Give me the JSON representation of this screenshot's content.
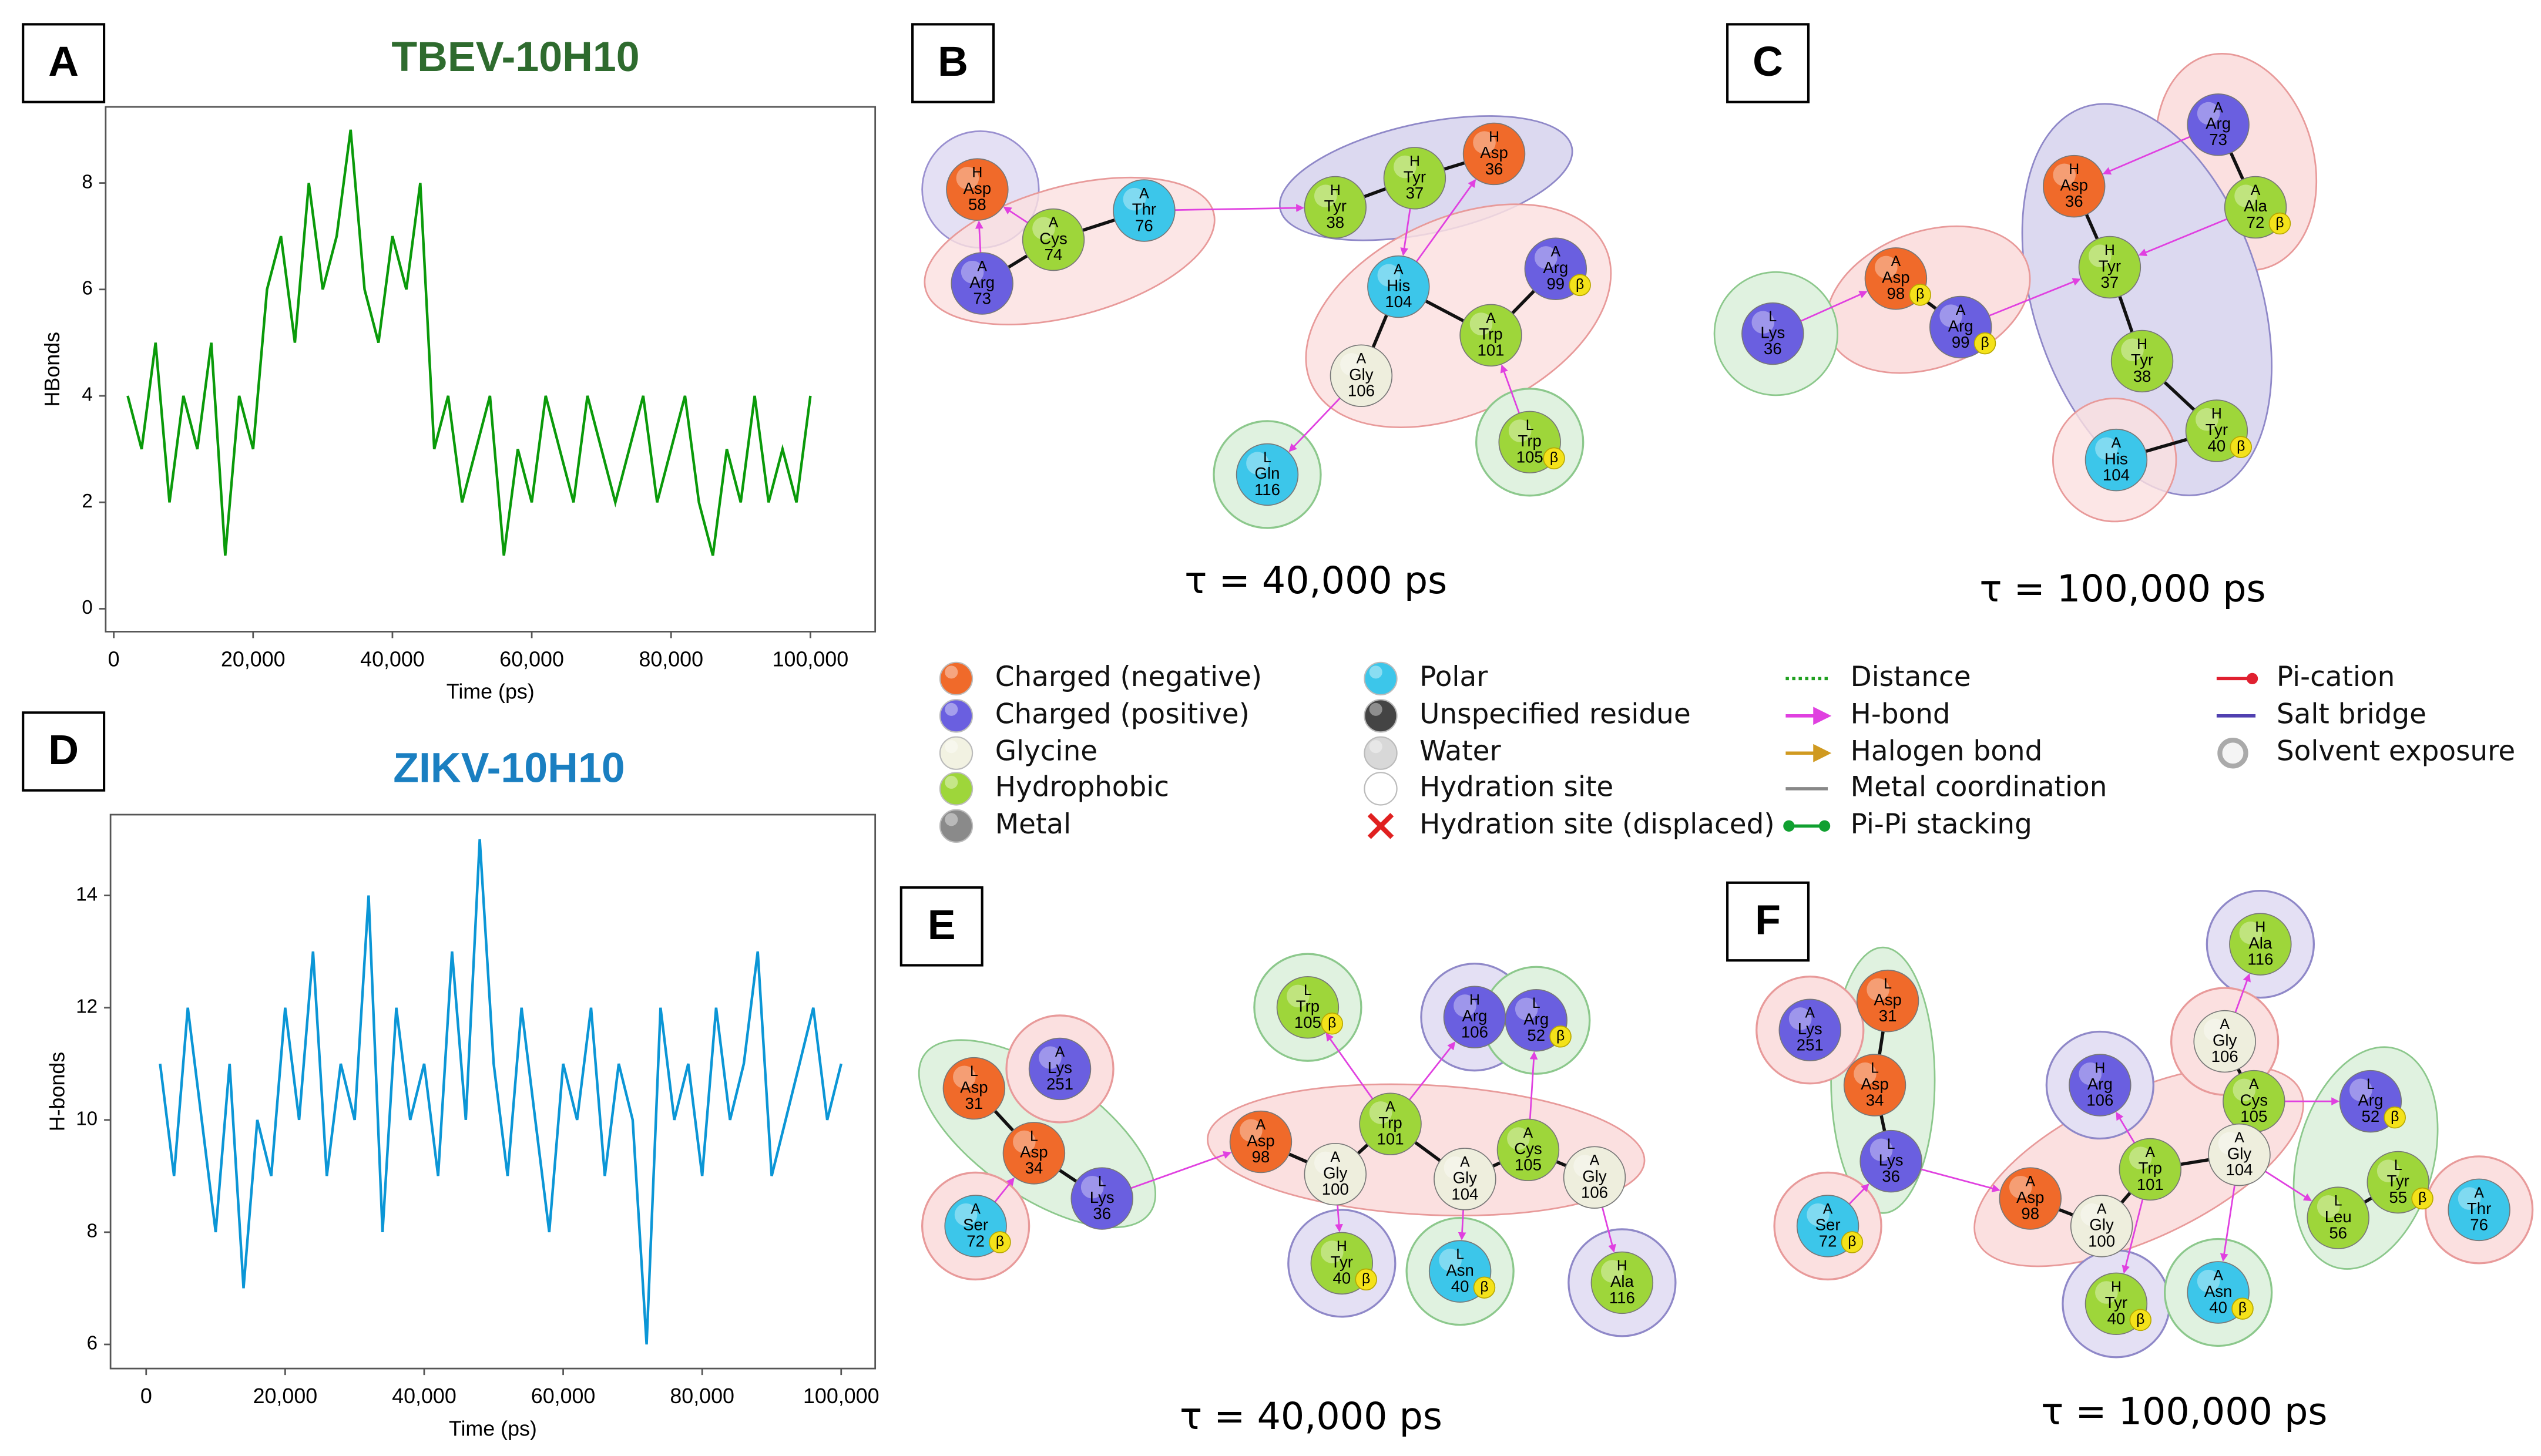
{
  "panel_labels": [
    "A",
    "B",
    "C",
    "D",
    "E",
    "F"
  ],
  "chart_data": [
    {
      "type": "line",
      "title": "TBEV-10H10",
      "title_color": "#2e6b2e",
      "color": "#0a9a0a",
      "xlabel": "Time (ps)",
      "ylabel": "HBonds",
      "xlim": [
        -1163,
        109300
      ],
      "ylim": [
        -0.43,
        9.43
      ],
      "xticks": [
        0,
        {
          "value": 20000,
          "label": "20,000"
        },
        {
          "value": 40000,
          "label": "40,000"
        },
        {
          "value": 60000,
          "label": "60,000"
        },
        {
          "value": 80000,
          "label": "80,000"
        },
        {
          "value": 100000,
          "label": "100,000"
        }
      ],
      "yticks": [
        0,
        2,
        4,
        6,
        8
      ],
      "x": [
        2000,
        4000,
        6000,
        8000,
        10000,
        12000,
        14000,
        16000,
        18000,
        20000,
        22000,
        24000,
        26000,
        28000,
        30000,
        32000,
        34000,
        36000,
        38000,
        40000,
        42000,
        44000,
        46000,
        48000,
        50000,
        52000,
        54000,
        56000,
        58000,
        60000,
        62000,
        64000,
        66000,
        68000,
        70000,
        72000,
        74000,
        76000,
        78000,
        80000,
        82000,
        84000,
        86000,
        88000,
        90000,
        92000,
        94000,
        96000,
        98000,
        100000
      ],
      "values": [
        4,
        3,
        5,
        2,
        4,
        3,
        5,
        1,
        4,
        3,
        6,
        7,
        5,
        8,
        6,
        7,
        9,
        6,
        5,
        7,
        6,
        8,
        3,
        4,
        2,
        3,
        4,
        1,
        3,
        2,
        4,
        3,
        2,
        4,
        3,
        2,
        3,
        4,
        2,
        3,
        4,
        2,
        1,
        3,
        2,
        4,
        2,
        3,
        2,
        4
      ]
    },
    {
      "type": "line",
      "title": "ZIKV-10H10",
      "title_color": "#1a7fc1",
      "color": "#0b96d6",
      "xlabel": "Time (ps)",
      "ylabel": "H-bonds",
      "xlim": [
        -5128,
        104895
      ],
      "ylim": [
        5.57,
        15.44
      ],
      "xticks": [
        0,
        {
          "value": 20000,
          "label": "20,000"
        },
        {
          "value": 40000,
          "label": "40,000"
        },
        {
          "value": 60000,
          "label": "60,000"
        },
        {
          "value": 80000,
          "label": "80,000"
        },
        {
          "value": 100000,
          "label": "100,000"
        }
      ],
      "yticks": [
        6,
        8,
        10,
        12,
        14
      ],
      "x": [
        2000,
        4000,
        6000,
        8000,
        10000,
        12000,
        14000,
        16000,
        18000,
        20000,
        22000,
        24000,
        26000,
        28000,
        30000,
        32000,
        34000,
        36000,
        38000,
        40000,
        42000,
        44000,
        46000,
        48000,
        50000,
        52000,
        54000,
        56000,
        58000,
        60000,
        62000,
        64000,
        66000,
        68000,
        70000,
        72000,
        74000,
        76000,
        78000,
        80000,
        82000,
        84000,
        86000,
        88000,
        90000,
        92000,
        94000,
        96000,
        98000,
        100000
      ],
      "values": [
        11,
        9,
        12,
        10,
        8,
        11,
        7,
        10,
        9,
        12,
        10,
        13,
        9,
        11,
        10,
        14,
        8,
        12,
        10,
        11,
        9,
        13,
        10,
        15,
        11,
        9,
        12,
        10,
        8,
        11,
        10,
        12,
        9,
        11,
        10,
        6,
        12,
        10,
        11,
        9,
        12,
        10,
        11,
        13,
        9,
        10,
        11,
        12,
        10,
        11
      ]
    }
  ],
  "diagrams": [
    {
      "caption": "τ = 40,000 ps",
      "nodes": [
        {
          "chain": "H",
          "residue": "Asp",
          "number": "58",
          "color": "#f06a2a"
        },
        {
          "chain": "A",
          "residue": "Arg",
          "number": "73",
          "color": "#6a5fe0"
        },
        {
          "chain": "A",
          "residue": "Cys",
          "number": "74",
          "color": "#9ed63a"
        },
        {
          "chain": "A",
          "residue": "Thr",
          "number": "76",
          "color": "#3cc6ea"
        },
        {
          "chain": "H",
          "residue": "Tyr",
          "number": "38",
          "color": "#9ed63a"
        },
        {
          "chain": "H",
          "residue": "Tyr",
          "number": "37",
          "color": "#9ed63a"
        },
        {
          "chain": "H",
          "residue": "Asp",
          "number": "36",
          "color": "#f06a2a"
        },
        {
          "chain": "A",
          "residue": "His",
          "number": "104",
          "color": "#3cc6ea"
        },
        {
          "chain": "A",
          "residue": "Arg",
          "number": "99",
          "beta": "β",
          "color": "#6a5fe0"
        },
        {
          "chain": "A",
          "residue": "Trp",
          "number": "101",
          "color": "#9ed63a"
        },
        {
          "chain": "A",
          "residue": "Gly",
          "number": "106",
          "color": "#eeeedd"
        },
        {
          "chain": "L",
          "residue": "Trp",
          "number": "105",
          "beta": "β",
          "color": "#9ed63a"
        },
        {
          "chain": "L",
          "residue": "Gln",
          "number": "116",
          "color": "#3cc6ea"
        }
      ]
    },
    {
      "caption": "τ = 100,000 ps",
      "nodes": [
        {
          "chain": "A",
          "residue": "Arg",
          "number": "73",
          "color": "#6a5fe0"
        },
        {
          "chain": "A",
          "residue": "Ala",
          "number": "72",
          "beta": "β",
          "color": "#9ed63a"
        },
        {
          "chain": "H",
          "residue": "Asp",
          "number": "36",
          "color": "#f06a2a"
        },
        {
          "chain": "H",
          "residue": "Tyr",
          "number": "37",
          "color": "#9ed63a"
        },
        {
          "chain": "A",
          "residue": "Asp",
          "number": "98",
          "beta": "β",
          "color": "#f06a2a"
        },
        {
          "chain": "A",
          "residue": "Arg",
          "number": "99",
          "beta": "β",
          "color": "#6a5fe0"
        },
        {
          "chain": "L",
          "residue": "Lys",
          "number": "36",
          "color": "#6a5fe0"
        },
        {
          "chain": "H",
          "residue": "Tyr",
          "number": "38",
          "color": "#9ed63a"
        },
        {
          "chain": "H",
          "residue": "Tyr",
          "number": "40",
          "beta": "β",
          "color": "#9ed63a"
        },
        {
          "chain": "A",
          "residue": "His",
          "number": "104",
          "color": "#3cc6ea"
        }
      ]
    },
    {
      "caption": "τ = 40,000 ps",
      "nodes": [
        {
          "chain": "L",
          "residue": "Asp",
          "number": "31",
          "color": "#f06a2a"
        },
        {
          "chain": "A",
          "residue": "Lys",
          "number": "251",
          "color": "#6a5fe0"
        },
        {
          "chain": "L",
          "residue": "Asp",
          "number": "34",
          "color": "#f06a2a"
        },
        {
          "chain": "L",
          "residue": "Lys",
          "number": "36",
          "color": "#6a5fe0"
        },
        {
          "chain": "A",
          "residue": "Ser",
          "number": "72",
          "beta": "β",
          "color": "#3cc6ea"
        },
        {
          "chain": "L",
          "residue": "Trp",
          "number": "105",
          "beta": "β",
          "color": "#9ed63a"
        },
        {
          "chain": "H",
          "residue": "Arg",
          "number": "106",
          "color": "#6a5fe0"
        },
        {
          "chain": "L",
          "residue": "Arg",
          "number": "52",
          "beta": "β",
          "color": "#6a5fe0"
        },
        {
          "chain": "A",
          "residue": "Asp",
          "number": "98",
          "color": "#f06a2a"
        },
        {
          "chain": "A",
          "residue": "Gly",
          "number": "100",
          "color": "#eeeedd"
        },
        {
          "chain": "A",
          "residue": "Trp",
          "number": "101",
          "color": "#9ed63a"
        },
        {
          "chain": "A",
          "residue": "Gly",
          "number": "104",
          "color": "#eeeedd"
        },
        {
          "chain": "A",
          "residue": "Cys",
          "number": "105",
          "color": "#9ed63a"
        },
        {
          "chain": "A",
          "residue": "Gly",
          "number": "106",
          "color": "#eeeedd"
        },
        {
          "chain": "H",
          "residue": "Tyr",
          "number": "40",
          "beta": "β",
          "color": "#9ed63a"
        },
        {
          "chain": "L",
          "residue": "Asn",
          "number": "40",
          "beta": "β",
          "color": "#3cc6ea"
        },
        {
          "chain": "H",
          "residue": "Ala",
          "number": "116",
          "color": "#9ed63a"
        }
      ]
    },
    {
      "caption": "τ = 100,000 ps",
      "nodes": [
        {
          "chain": "A",
          "residue": "Lys",
          "number": "251",
          "color": "#6a5fe0"
        },
        {
          "chain": "L",
          "residue": "Asp",
          "number": "31",
          "color": "#f06a2a"
        },
        {
          "chain": "L",
          "residue": "Asp",
          "number": "34",
          "color": "#f06a2a"
        },
        {
          "chain": "L",
          "residue": "Lys",
          "number": "36",
          "color": "#6a5fe0"
        },
        {
          "chain": "A",
          "residue": "Ser",
          "number": "72",
          "beta": "β",
          "color": "#3cc6ea"
        },
        {
          "chain": "H",
          "residue": "Ala",
          "number": "116",
          "color": "#9ed63a"
        },
        {
          "chain": "A",
          "residue": "Gly",
          "number": "106",
          "color": "#eeeedd"
        },
        {
          "chain": "H",
          "residue": "Arg",
          "number": "106",
          "color": "#6a5fe0"
        },
        {
          "chain": "A",
          "residue": "Cys",
          "number": "105",
          "color": "#9ed63a"
        },
        {
          "chain": "L",
          "residue": "Arg",
          "number": "52",
          "beta": "β",
          "color": "#6a5fe0"
        },
        {
          "chain": "A",
          "residue": "Gly",
          "number": "104",
          "color": "#eeeedd"
        },
        {
          "chain": "A",
          "residue": "Trp",
          "number": "101",
          "color": "#9ed63a"
        },
        {
          "chain": "A",
          "residue": "Asp",
          "number": "98",
          "color": "#f06a2a"
        },
        {
          "chain": "A",
          "residue": "Gly",
          "number": "100",
          "color": "#eeeedd"
        },
        {
          "chain": "L",
          "residue": "Tyr",
          "number": "55",
          "beta": "β",
          "color": "#9ed63a"
        },
        {
          "chain": "L",
          "residue": "Leu",
          "number": "56",
          "color": "#9ed63a"
        },
        {
          "chain": "A",
          "residue": "Thr",
          "number": "76",
          "color": "#3cc6ea"
        },
        {
          "chain": "H",
          "residue": "Tyr",
          "number": "40",
          "beta": "β",
          "color": "#9ed63a"
        },
        {
          "chain": "A",
          "residue": "Asn",
          "number": "40",
          "beta": "β",
          "color": "#3cc6ea"
        }
      ]
    }
  ],
  "legend": [
    {
      "label": "Charged (negative)"
    },
    {
      "label": "Charged (positive)"
    },
    {
      "label": "Glycine"
    },
    {
      "label": "Hydrophobic"
    },
    {
      "label": "Metal"
    },
    {
      "label": "Polar"
    },
    {
      "label": "Unspecified residue"
    },
    {
      "label": "Water"
    },
    {
      "label": "Hydration site"
    },
    {
      "label": "Hydration site (displaced)"
    },
    {
      "label": "Distance"
    },
    {
      "label": "H-bond"
    },
    {
      "label": "Halogen bond"
    },
    {
      "label": "Metal coordination"
    },
    {
      "label": "Pi-Pi stacking"
    },
    {
      "label": "Pi-cation"
    },
    {
      "label": "Salt bridge"
    },
    {
      "label": "Solvent exposure"
    }
  ]
}
